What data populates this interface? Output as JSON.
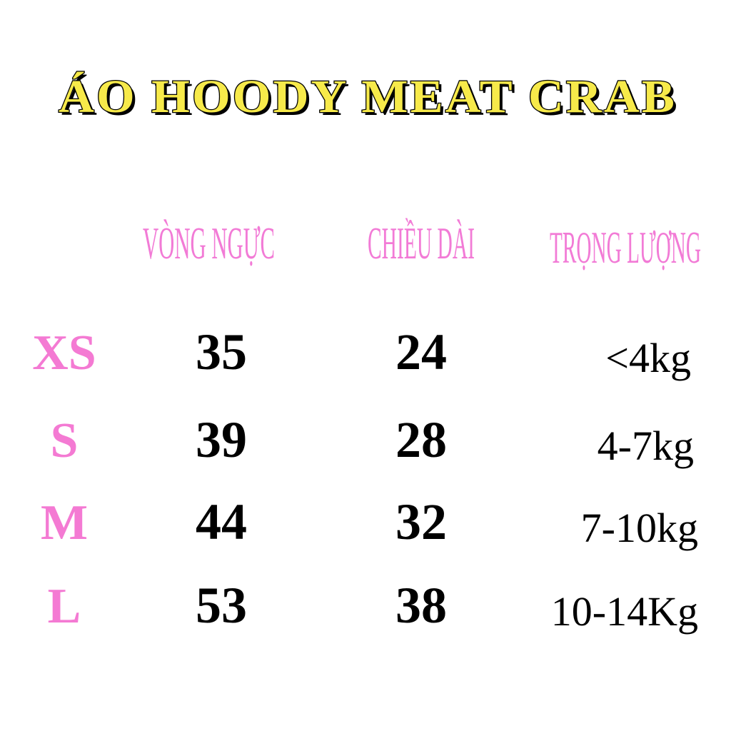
{
  "header": {
    "title": "ÁO HOODY MEAT CRAB"
  },
  "table": {
    "columns": [
      "VÒNG NGỰC",
      "CHIỀU DÀI",
      "TRỌNG LƯỢNG"
    ],
    "rows": [
      {
        "size": "XS",
        "cells": [
          35,
          24,
          "<4kg"
        ]
      },
      {
        "size": "S",
        "cells": [
          39,
          28,
          "4-7kg"
        ]
      },
      {
        "size": "M",
        "cells": [
          44,
          32,
          "7-10kg"
        ]
      },
      {
        "size": "L",
        "cells": [
          53,
          38,
          "10-14Kg"
        ]
      }
    ]
  }
}
